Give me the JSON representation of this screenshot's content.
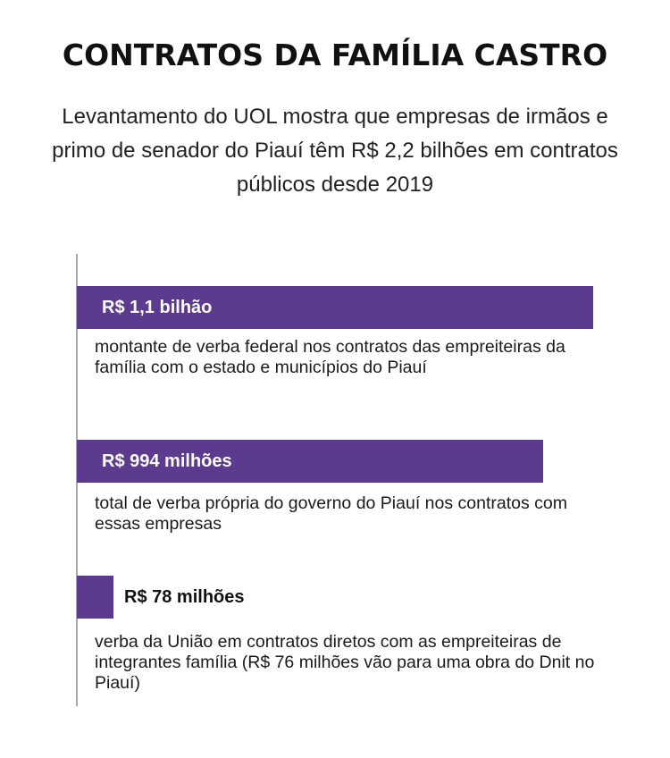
{
  "chart_data": {
    "type": "bar",
    "title": "CONTRATOS DA FAMÍLIA CASTRO",
    "subtitle": "Levantamento do UOL mostra que empresas de irmãos e primo de senador do Piauí têm R$ 2,2 bilhões em contratos públicos desde 2019",
    "orientation": "horizontal",
    "unit": "R$ milhões",
    "items": [
      {
        "label": "R$ 1,1 bilhão",
        "value": 1100,
        "description": "montante de verba federal nos contratos das empreiteiras da família com o estado e municípios do Piauí"
      },
      {
        "label": "R$ 994 milhões",
        "value": 994,
        "description": "total de verba própria do governo do Piauí nos contratos com essas empresas"
      },
      {
        "label": "R$ 78 milhões",
        "value": 78,
        "description": "verba da União em contratos diretos com as empreiteiras de integrantes família (R$ 76 milhões vão para uma obra do Dnit no Piauí)"
      }
    ],
    "xlim": [
      0,
      1100
    ],
    "grid": false,
    "legend": "none"
  },
  "colors": {
    "bar": "#5c3a8e",
    "axis": "#a8a8a8"
  }
}
